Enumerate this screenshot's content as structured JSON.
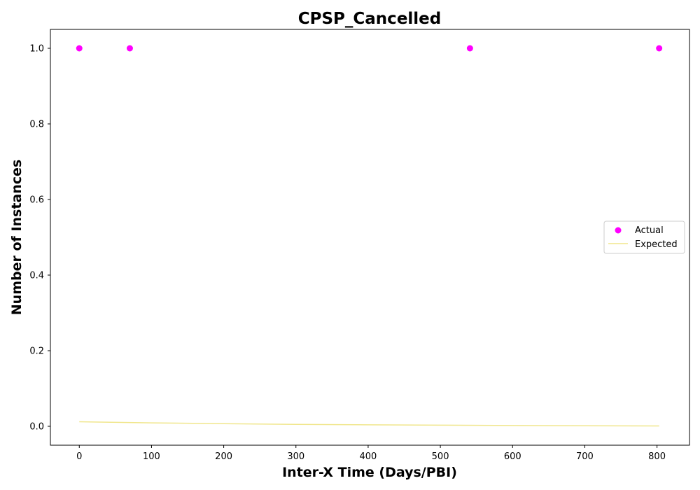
{
  "chart_data": {
    "type": "scatter",
    "title": "CPSP_Cancelled",
    "xlabel": "Inter-X Time (Days/PBI)",
    "ylabel": "Number of Instances",
    "xlim": [
      -40,
      845
    ],
    "ylim": [
      -0.05,
      1.05
    ],
    "xticks": [
      0,
      100,
      200,
      300,
      400,
      500,
      600,
      700,
      800
    ],
    "yticks": [
      0.0,
      0.2,
      0.4,
      0.6,
      0.8,
      1.0
    ],
    "xtick_labels": [
      "0",
      "100",
      "200",
      "300",
      "400",
      "500",
      "600",
      "700",
      "800"
    ],
    "ytick_labels": [
      "0.0",
      "0.2",
      "0.4",
      "0.6",
      "0.8",
      "1.0"
    ],
    "grid": false,
    "legend_position": "center-right",
    "series": [
      {
        "name": "Actual",
        "kind": "scatter",
        "color": "#ff00ff",
        "x": [
          0,
          70,
          541,
          803
        ],
        "y": [
          1,
          1,
          1,
          1
        ]
      },
      {
        "name": "Expected",
        "kind": "line",
        "color": "#f0e68c",
        "x": [
          0,
          100,
          200,
          300,
          400,
          500,
          600,
          700,
          803
        ],
        "y": [
          0.012,
          0.009,
          0.007,
          0.005,
          0.004,
          0.003,
          0.002,
          0.0015,
          0.001
        ]
      }
    ]
  }
}
